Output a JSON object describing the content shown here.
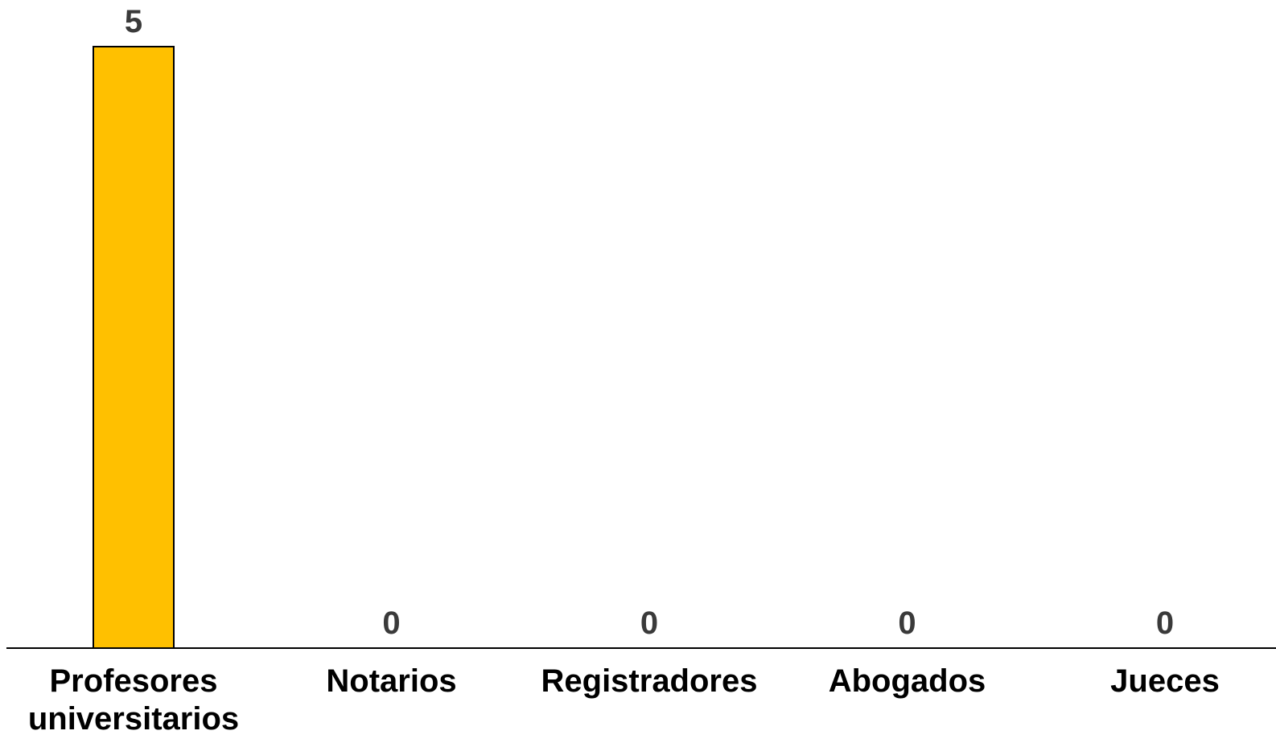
{
  "chart_data": {
    "type": "bar",
    "categories": [
      [
        "Profesores",
        "universitarios"
      ],
      [
        "Notarios"
      ],
      [
        "Registradores"
      ],
      [
        "Abogados"
      ],
      [
        "Jueces"
      ]
    ],
    "values": [
      5,
      0,
      0,
      0,
      0
    ],
    "data_labels": [
      "5",
      "0",
      "0",
      "0",
      "0"
    ],
    "title": "",
    "xlabel": "",
    "ylabel": "",
    "ylim": [
      0,
      5
    ],
    "grid": false,
    "legend": "none",
    "colors": {
      "bar_fill": "#FFC000",
      "bar_stroke": "#000000",
      "axis": "#000000",
      "data_label": "#3a3a3a",
      "tick_label": "#000000"
    }
  }
}
